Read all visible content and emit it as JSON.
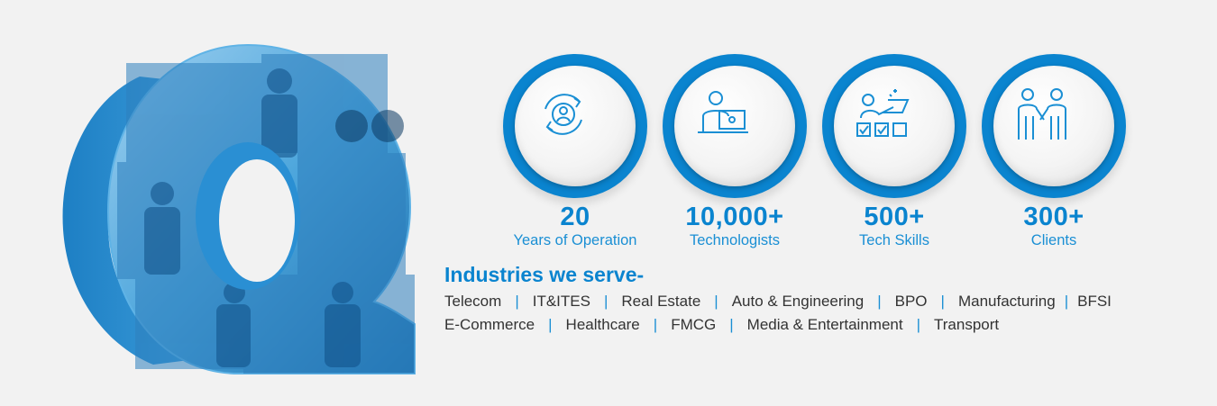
{
  "stats": [
    {
      "value": "20",
      "label": "Years of Operation",
      "icon": "cycle-user-icon"
    },
    {
      "value": "10,000+",
      "label": "Technologists",
      "icon": "person-laptop-icon"
    },
    {
      "value": "500+",
      "label": "Tech Skills",
      "icon": "person-checklist-icon"
    },
    {
      "value": "300+",
      "label": "Clients",
      "icon": "handshake-people-icon"
    }
  ],
  "industries": {
    "title": "Industries we serve-",
    "row1": [
      "Telecom",
      "IT&ITES",
      "Real Estate",
      "Auto & Engineering",
      "BPO",
      "Manufacturing",
      "BFSI"
    ],
    "row2": [
      "E-Commerce",
      "Healthcare",
      "FMCG",
      "Media & Entertainment",
      "Transport"
    ]
  },
  "colors": {
    "accent": "#0a84cf",
    "label": "#1a8fd4",
    "text": "#333333",
    "background": "#f2f2f2"
  }
}
